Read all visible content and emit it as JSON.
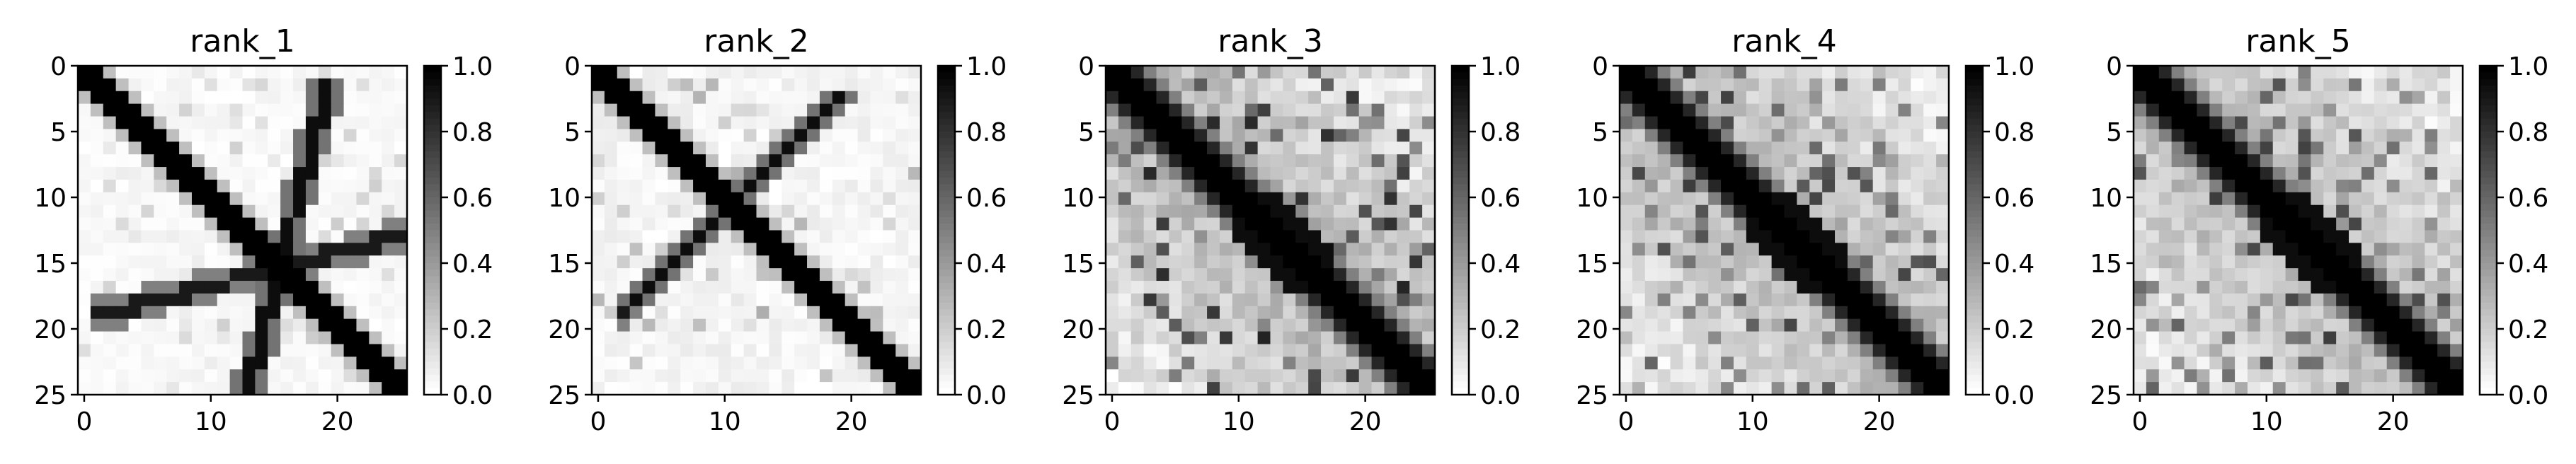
{
  "chart_data": [
    {
      "type": "heatmap",
      "title": "rank_1",
      "rows": 26,
      "cols": 26,
      "pattern": "x",
      "secondary_row_start": 2,
      "secondary_col_start": 19,
      "secondary_row_end": 25,
      "secondary_col_end": 13,
      "noise": 0.05,
      "xticks": [
        0,
        10,
        20
      ],
      "yticks": [
        0,
        5,
        10,
        15,
        20,
        25
      ],
      "colorbar": {
        "vmin": 0,
        "vmax": 1,
        "ticks": [
          "0.0",
          "0.2",
          "0.4",
          "0.6",
          "0.8",
          "1.0"
        ]
      },
      "colormap": "Greys",
      "grid": false
    },
    {
      "type": "heatmap",
      "title": "rank_2",
      "rows": 26,
      "cols": 26,
      "pattern": "x",
      "secondary_row_start": 2,
      "secondary_col_start": 19,
      "secondary_row_end": 18,
      "secondary_col_end": 3,
      "noise": 0.08,
      "xticks": [
        0,
        10,
        20
      ],
      "yticks": [
        0,
        5,
        10,
        15,
        20,
        25
      ],
      "colorbar": {
        "vmin": 0,
        "vmax": 1,
        "ticks": [
          "0.0",
          "0.2",
          "0.4",
          "0.6",
          "0.8",
          "1.0"
        ]
      },
      "colormap": "Greys",
      "grid": false
    },
    {
      "type": "heatmap",
      "title": "rank_3",
      "rows": 26,
      "cols": 26,
      "pattern": "diagonal",
      "band_width": 2.2,
      "noise": 0.35,
      "xticks": [
        0,
        10,
        20
      ],
      "yticks": [
        0,
        5,
        10,
        15,
        20,
        25
      ],
      "colorbar": {
        "vmin": 0,
        "vmax": 1,
        "ticks": [
          "0.0",
          "0.2",
          "0.4",
          "0.6",
          "0.8",
          "1.0"
        ]
      },
      "colormap": "Greys",
      "grid": false
    },
    {
      "type": "heatmap",
      "title": "rank_4",
      "rows": 26,
      "cols": 26,
      "pattern": "diagonal",
      "band_width": 2.4,
      "noise": 0.28,
      "xticks": [
        0,
        10,
        20
      ],
      "yticks": [
        0,
        5,
        10,
        15,
        20,
        25
      ],
      "colorbar": {
        "vmin": 0,
        "vmax": 1,
        "ticks": [
          "0.0",
          "0.2",
          "0.4",
          "0.6",
          "0.8",
          "1.0"
        ]
      },
      "colormap": "Greys",
      "grid": false
    },
    {
      "type": "heatmap",
      "title": "rank_5",
      "rows": 26,
      "cols": 26,
      "pattern": "diagonal",
      "band_width": 2.4,
      "noise": 0.28,
      "xticks": [
        0,
        10,
        20
      ],
      "yticks": [
        0,
        5,
        10,
        15,
        20,
        25
      ],
      "colorbar": {
        "vmin": 0,
        "vmax": 1,
        "ticks": [
          "0.0",
          "0.2",
          "0.4",
          "0.6",
          "0.8",
          "1.0"
        ]
      },
      "colormap": "Greys",
      "grid": false
    }
  ]
}
